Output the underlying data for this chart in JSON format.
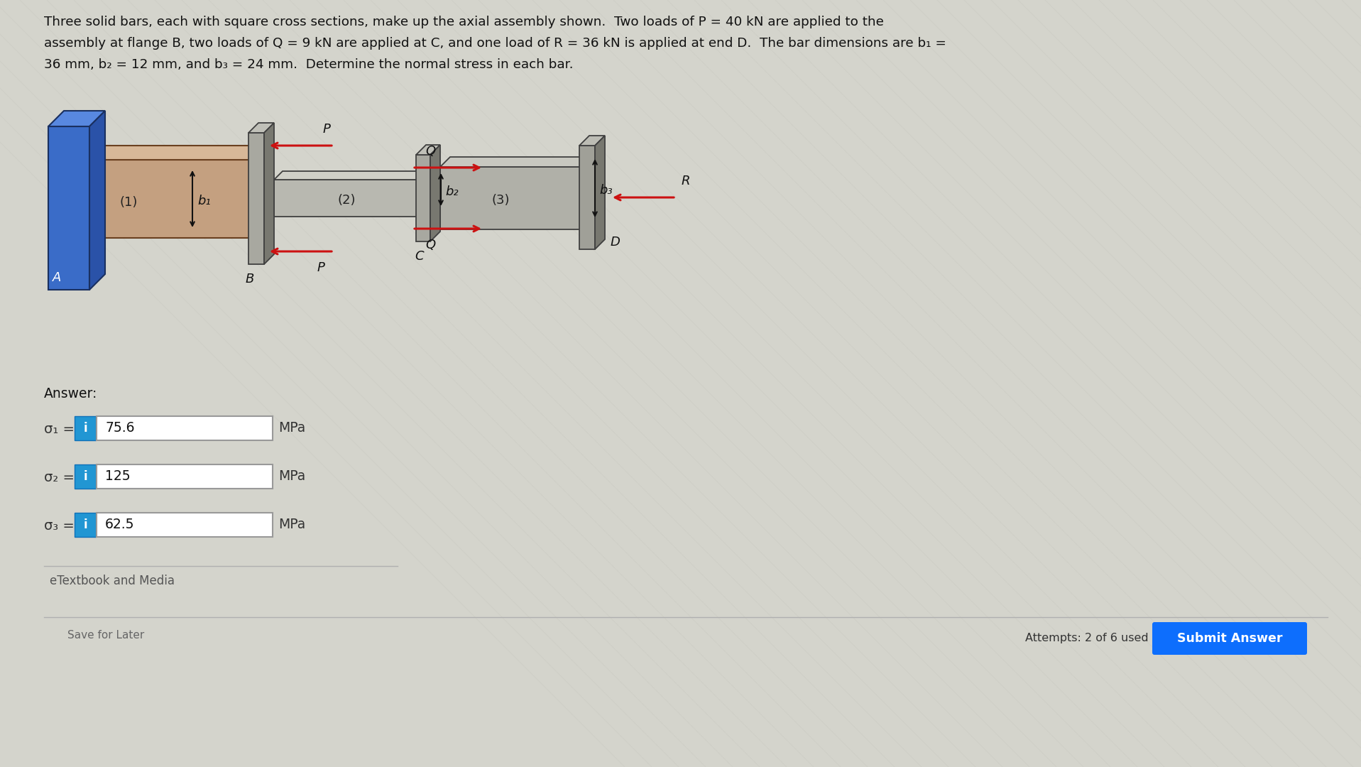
{
  "bg_color": "#d4d4cc",
  "title_lines": [
    "Three solid bars, each with square cross sections, make up the axial assembly shown.  Two loads of P = 40 kN are applied to the",
    "assembly at flange B, two loads of Q = 9 kN are applied at C, and one load of R = 36 kN is applied at end D.  The bar dimensions are b₁ =",
    "36 mm, b₂ = 12 mm, and b₃ = 24 mm.  Determine the normal stress in each bar."
  ],
  "answer_label": "Answer:",
  "rows": [
    {
      "label": "σ₁ =",
      "value": "75.6",
      "unit": "MPa"
    },
    {
      "label": "σ₂ =",
      "value": "125",
      "unit": "MPa"
    },
    {
      "label": "σ₃ =",
      "value": "62.5",
      "unit": "MPa"
    }
  ],
  "etextbook_label": "eTextbook and Media",
  "save_label": "Save for Later",
  "attempts_label": "Attempts: 2 of 6 used",
  "submit_label": "Submit Answer",
  "submit_bg": "#0d6efd",
  "info_bg": "#2196d3",
  "wall_face_color": "#3a6cc8",
  "wall_top_color": "#5888e0",
  "wall_side_color": "#2a52a8",
  "bar1_face_color": "#c4a080",
  "bar1_top_color": "#d8b898",
  "bar1_side_color": "#a07858",
  "bar2_face_color": "#b8b8b0",
  "bar2_top_color": "#d0d0c8",
  "bar2_side_color": "#909088",
  "flange_face_color": "#a8a8a0",
  "flange_top_color": "#c0c0b8",
  "flange_side_color": "#787870",
  "bar3_face_color": "#b0b0a8",
  "bar3_top_color": "#c8c8c0",
  "bar3_side_color": "#888880",
  "end_face_color": "#a0a098",
  "end_top_color": "#bcbcb4",
  "end_side_color": "#787870",
  "arrow_color": "#cc1111",
  "label_color": "#111111"
}
